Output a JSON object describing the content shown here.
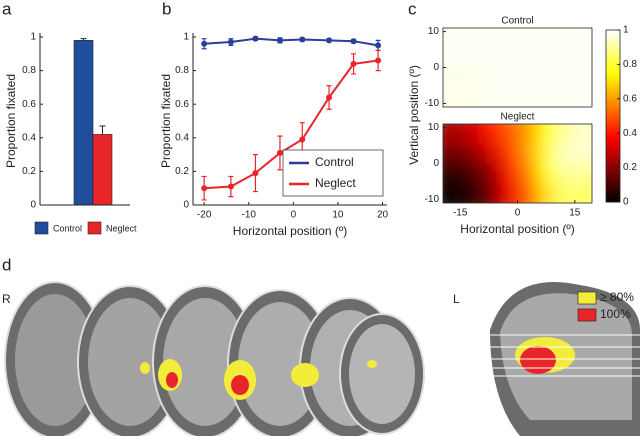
{
  "chart_data": [
    {
      "type": "bar",
      "label": "a",
      "ylabel": "Proportion fixated",
      "categories": [
        null
      ],
      "series": [
        {
          "name": "Control",
          "color": "#1f4e9c",
          "values": [
            0.98
          ],
          "errors": [
            0.01
          ]
        },
        {
          "name": "Neglect",
          "color": "#e8262a",
          "values": [
            0.42
          ],
          "errors": [
            0.05
          ]
        }
      ],
      "ylim": [
        0,
        1
      ],
      "yticks": [
        0,
        0.2,
        0.4,
        0.6,
        0.8,
        1
      ]
    },
    {
      "type": "line",
      "label": "b",
      "xlabel": "Horizontal position (º)",
      "ylabel": "Proportion fixated",
      "x": [
        -20,
        -14,
        -8.5,
        -3,
        2,
        8,
        13.5,
        19
      ],
      "series": [
        {
          "name": "Control",
          "color": "#2a3f9a",
          "values": [
            0.96,
            0.97,
            0.99,
            0.98,
            0.985,
            0.98,
            0.975,
            0.95
          ],
          "errors": [
            0.03,
            0.02,
            0.01,
            0.015,
            0.01,
            0.01,
            0.01,
            0.03
          ]
        },
        {
          "name": "Neglect",
          "color": "#e8262a",
          "values": [
            0.1,
            0.11,
            0.19,
            0.31,
            0.39,
            0.64,
            0.84,
            0.86
          ],
          "errors": [
            0.07,
            0.06,
            0.11,
            0.1,
            0.1,
            0.07,
            0.06,
            0.06
          ]
        }
      ],
      "xlim": [
        -22.5,
        21
      ],
      "xticks": [
        -20,
        -10,
        0,
        10,
        20
      ],
      "ylim": [
        0,
        1
      ],
      "yticks": [
        0,
        0.2,
        0.4,
        0.6,
        0.8,
        1
      ],
      "legend": "lower right"
    },
    {
      "type": "heatmap",
      "label": "c",
      "xlabel": "Horizontal position (º)",
      "ylabel": "Vertical position (º)",
      "xlim": [
        -19.5,
        19.5
      ],
      "xticks": [
        -15,
        0,
        15
      ],
      "ylim": [
        -11,
        11
      ],
      "yticks": [
        -10,
        0,
        10
      ],
      "colormap": "hot",
      "clim": [
        0,
        1
      ],
      "cticks": [
        0,
        0.2,
        0.4,
        0.6,
        0.8,
        1
      ],
      "maps": [
        {
          "title": "Control",
          "values": [
            [
              0.99,
              0.99,
              0.99,
              0.99
            ],
            [
              0.98,
              0.99,
              0.99,
              0.99
            ]
          ]
        },
        {
          "title": "Neglect",
          "values": [
            [
              0.25,
              0.3,
              0.4,
              0.5,
              0.6,
              0.75,
              0.9,
              0.95
            ],
            [
              0.15,
              0.2,
              0.3,
              0.45,
              0.6,
              0.8,
              0.95,
              0.95
            ],
            [
              0.05,
              0.1,
              0.2,
              0.4,
              0.55,
              0.75,
              0.9,
              0.9
            ],
            [
              0.02,
              0.05,
              0.15,
              0.35,
              0.5,
              0.7,
              0.85,
              0.85
            ]
          ]
        }
      ]
    }
  ],
  "panel_d": {
    "label": "d",
    "side_left": "R",
    "side_right": "L",
    "legend": [
      {
        "label": "≥ 80%",
        "color": "#f3ec3a"
      },
      {
        "label": "100%",
        "color": "#e8262a"
      }
    ]
  }
}
